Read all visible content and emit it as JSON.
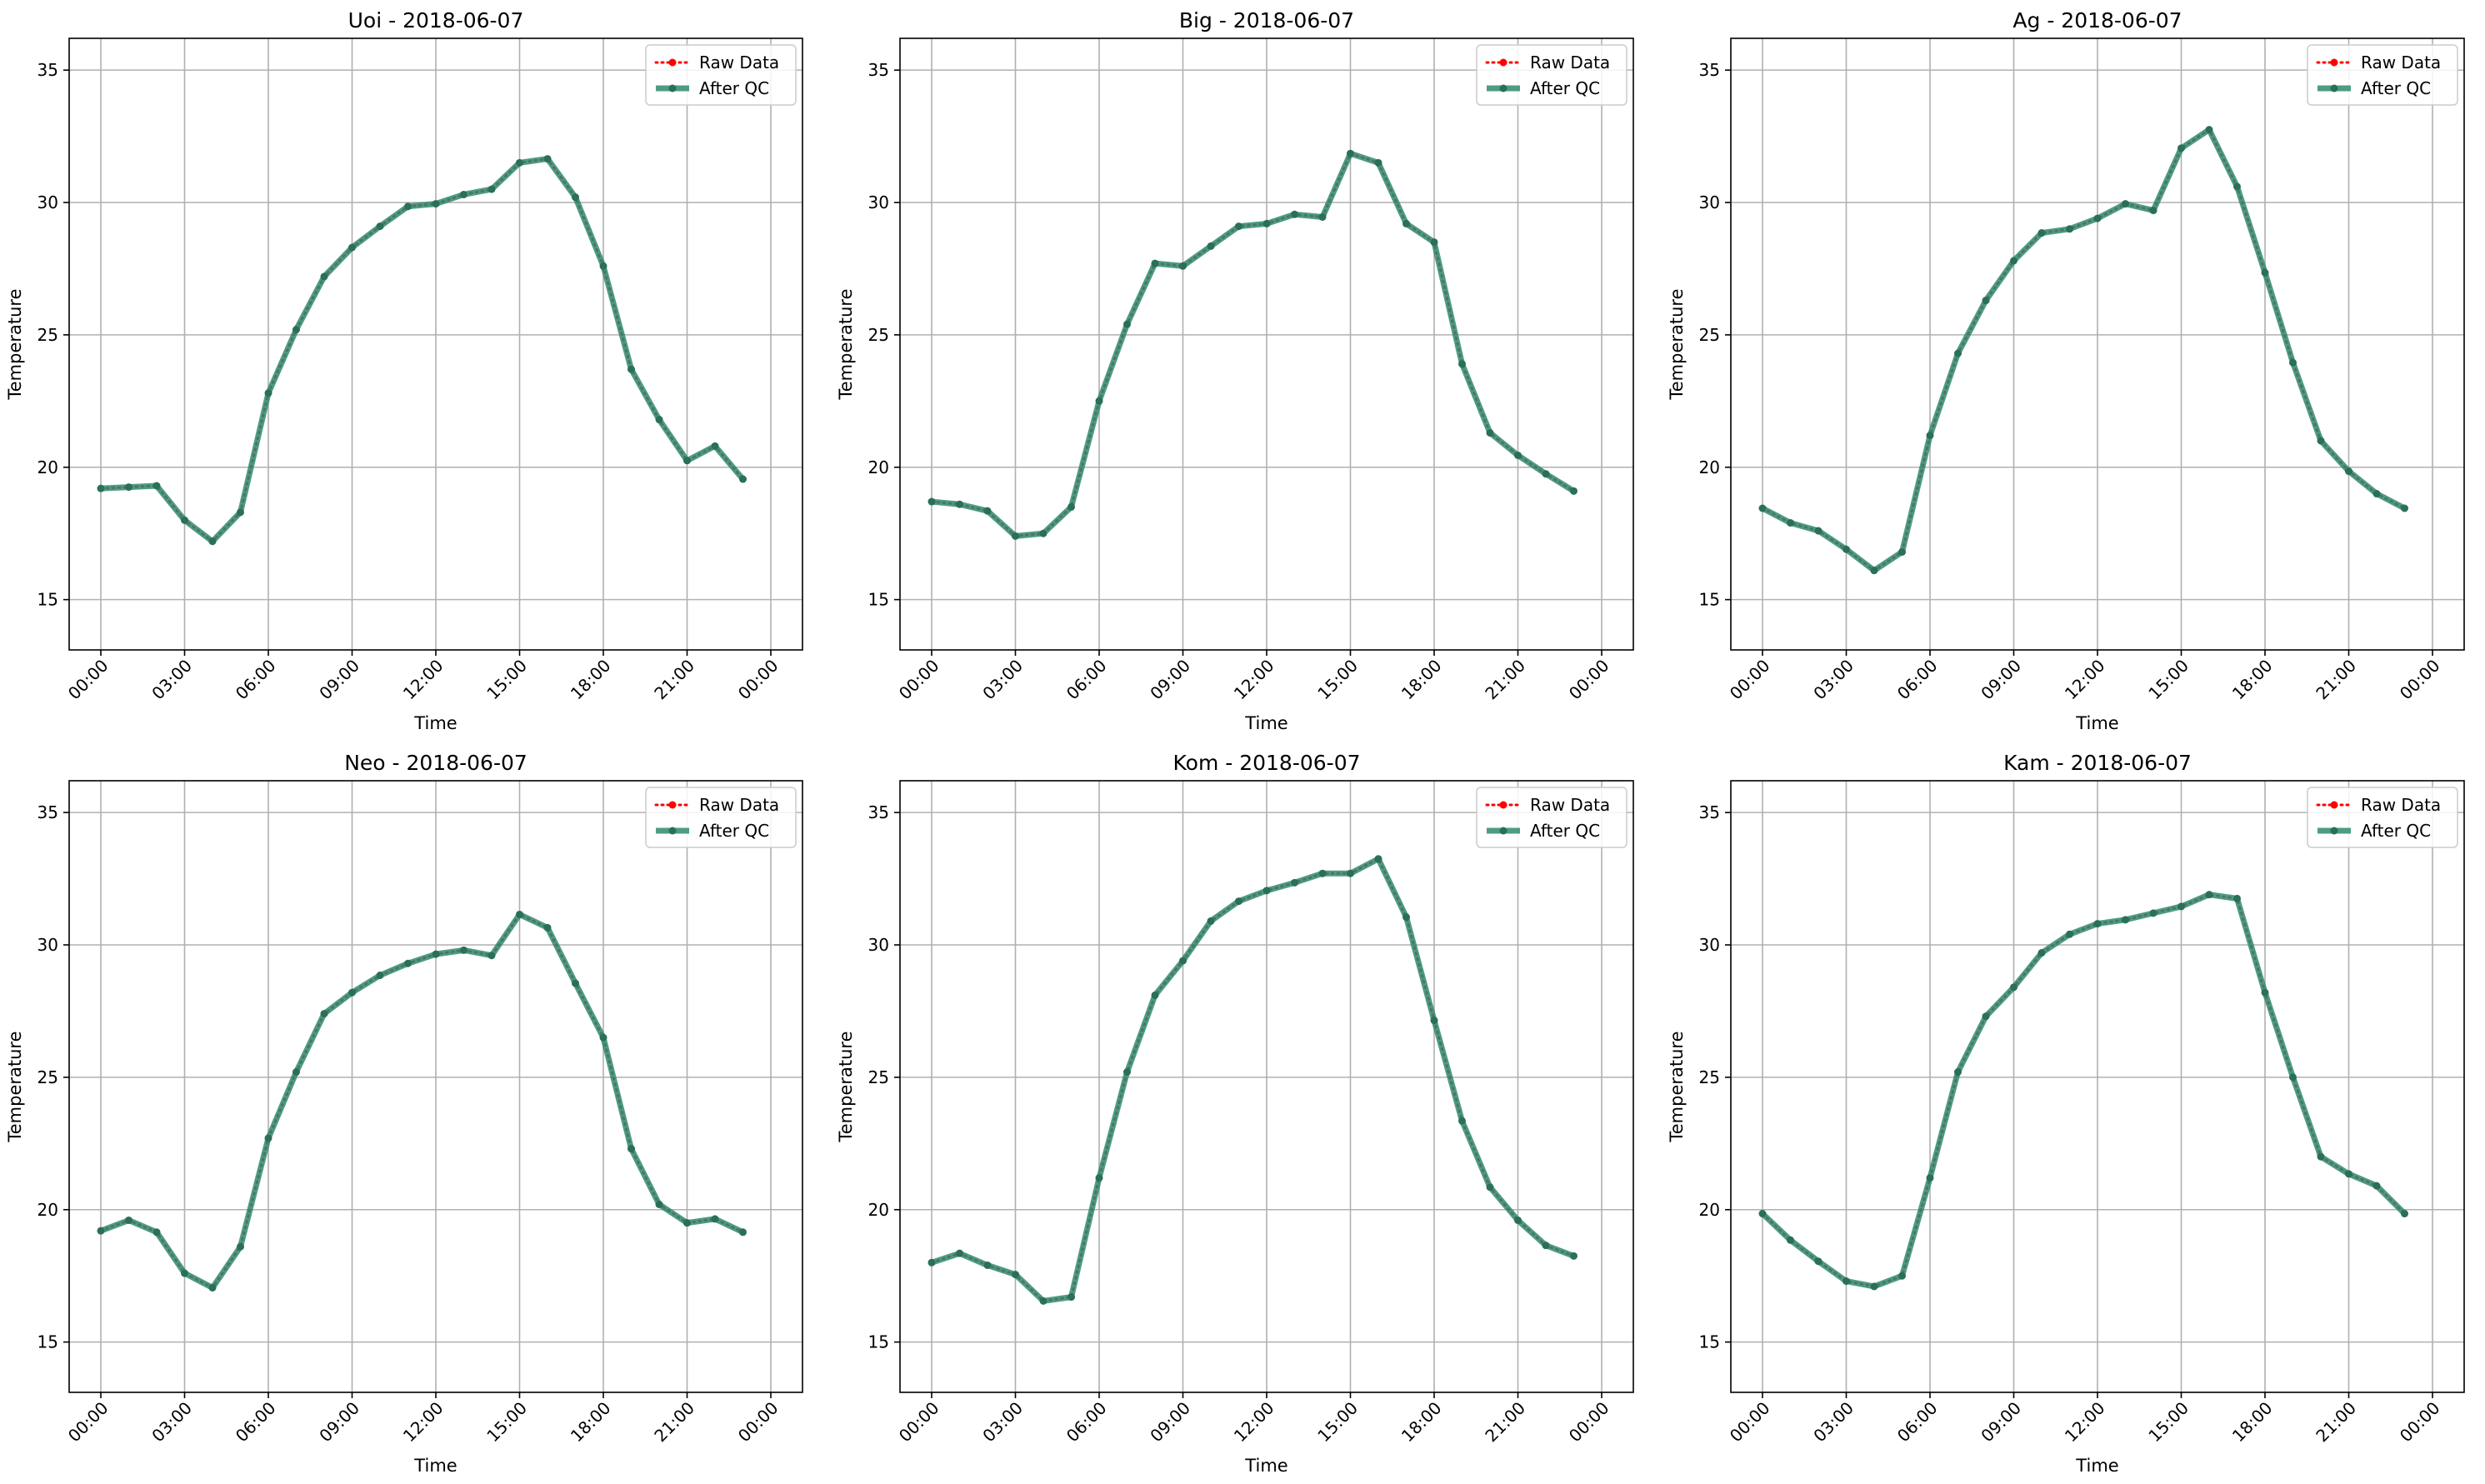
{
  "chart_data": [
    {
      "type": "line",
      "title": "Uoi - 2018-06-07",
      "xlabel": "Time",
      "ylabel": "Temperature",
      "x": [
        "00:00",
        "01:00",
        "02:00",
        "03:00",
        "04:00",
        "05:00",
        "06:00",
        "07:00",
        "08:00",
        "09:00",
        "10:00",
        "11:00",
        "12:00",
        "13:00",
        "14:00",
        "15:00",
        "16:00",
        "17:00",
        "18:00",
        "19:00",
        "20:00",
        "21:00",
        "22:00",
        "23:00"
      ],
      "xticks": [
        "00:00",
        "03:00",
        "06:00",
        "09:00",
        "12:00",
        "15:00",
        "18:00",
        "21:00",
        "00:00"
      ],
      "yticks": [
        15,
        20,
        25,
        30,
        35
      ],
      "ylim": [
        13.1,
        36.2
      ],
      "grid": true,
      "legend_position": "top-right",
      "series": [
        {
          "name": "Raw Data",
          "color": "#ff0000",
          "style": "dotted",
          "marker": "circle",
          "values": [
            19.2,
            19.25,
            19.3,
            18.0,
            17.2,
            18.3,
            22.8,
            25.2,
            27.2,
            28.3,
            29.1,
            29.85,
            29.95,
            30.3,
            30.5,
            31.5,
            31.65,
            30.2,
            27.6,
            23.7,
            21.8,
            20.25,
            20.8,
            19.55
          ]
        },
        {
          "name": "After QC",
          "color": "#2e8b6f",
          "style": "solid",
          "marker": "circle",
          "values": [
            19.2,
            19.25,
            19.3,
            18.0,
            17.2,
            18.3,
            22.8,
            25.2,
            27.2,
            28.3,
            29.1,
            29.85,
            29.95,
            30.3,
            30.5,
            31.5,
            31.65,
            30.2,
            27.6,
            23.7,
            21.8,
            20.25,
            20.8,
            19.55
          ]
        }
      ]
    },
    {
      "type": "line",
      "title": "Big - 2018-06-07",
      "xlabel": "Time",
      "ylabel": "Temperature",
      "x": [
        "00:00",
        "01:00",
        "02:00",
        "03:00",
        "04:00",
        "05:00",
        "06:00",
        "07:00",
        "08:00",
        "09:00",
        "10:00",
        "11:00",
        "12:00",
        "13:00",
        "14:00",
        "15:00",
        "16:00",
        "17:00",
        "18:00",
        "19:00",
        "20:00",
        "21:00",
        "22:00",
        "23:00"
      ],
      "xticks": [
        "00:00",
        "03:00",
        "06:00",
        "09:00",
        "12:00",
        "15:00",
        "18:00",
        "21:00",
        "00:00"
      ],
      "yticks": [
        15,
        20,
        25,
        30,
        35
      ],
      "ylim": [
        13.1,
        36.2
      ],
      "grid": true,
      "legend_position": "top-right",
      "series": [
        {
          "name": "Raw Data",
          "color": "#ff0000",
          "style": "dotted",
          "marker": "circle",
          "values": [
            18.7,
            18.6,
            18.35,
            17.4,
            17.5,
            18.5,
            22.5,
            25.4,
            27.7,
            27.6,
            28.35,
            29.1,
            29.2,
            29.55,
            29.45,
            31.85,
            31.5,
            29.2,
            28.5,
            23.9,
            21.3,
            20.45,
            19.75,
            19.1
          ]
        },
        {
          "name": "After QC",
          "color": "#2e8b6f",
          "style": "solid",
          "marker": "circle",
          "values": [
            18.7,
            18.6,
            18.35,
            17.4,
            17.5,
            18.5,
            22.5,
            25.4,
            27.7,
            27.6,
            28.35,
            29.1,
            29.2,
            29.55,
            29.45,
            31.85,
            31.5,
            29.2,
            28.5,
            23.9,
            21.3,
            20.45,
            19.75,
            19.1
          ]
        }
      ]
    },
    {
      "type": "line",
      "title": "Ag - 2018-06-07",
      "xlabel": "Time",
      "ylabel": "Temperature",
      "x": [
        "00:00",
        "01:00",
        "02:00",
        "03:00",
        "04:00",
        "05:00",
        "06:00",
        "07:00",
        "08:00",
        "09:00",
        "10:00",
        "11:00",
        "12:00",
        "13:00",
        "14:00",
        "15:00",
        "16:00",
        "17:00",
        "18:00",
        "19:00",
        "20:00",
        "21:00",
        "22:00",
        "23:00"
      ],
      "xticks": [
        "00:00",
        "03:00",
        "06:00",
        "09:00",
        "12:00",
        "15:00",
        "18:00",
        "21:00",
        "00:00"
      ],
      "yticks": [
        15,
        20,
        25,
        30,
        35
      ],
      "ylim": [
        13.1,
        36.2
      ],
      "grid": true,
      "legend_position": "top-right",
      "series": [
        {
          "name": "Raw Data",
          "color": "#ff0000",
          "style": "dotted",
          "marker": "circle",
          "values": [
            18.45,
            17.9,
            17.6,
            16.9,
            16.1,
            16.8,
            21.2,
            24.3,
            26.3,
            27.8,
            28.85,
            29.0,
            29.4,
            29.95,
            29.7,
            32.05,
            32.75,
            30.6,
            27.35,
            23.95,
            21.0,
            19.85,
            19.0,
            18.45
          ]
        },
        {
          "name": "After QC",
          "color": "#2e8b6f",
          "style": "solid",
          "marker": "circle",
          "values": [
            18.45,
            17.9,
            17.6,
            16.9,
            16.1,
            16.8,
            21.2,
            24.3,
            26.3,
            27.8,
            28.85,
            29.0,
            29.4,
            29.95,
            29.7,
            32.05,
            32.75,
            30.6,
            27.35,
            23.95,
            21.0,
            19.85,
            19.0,
            18.45
          ]
        }
      ]
    },
    {
      "type": "line",
      "title": "Neo - 2018-06-07",
      "xlabel": "Time",
      "ylabel": "Temperature",
      "x": [
        "00:00",
        "01:00",
        "02:00",
        "03:00",
        "04:00",
        "05:00",
        "06:00",
        "07:00",
        "08:00",
        "09:00",
        "10:00",
        "11:00",
        "12:00",
        "13:00",
        "14:00",
        "15:00",
        "16:00",
        "17:00",
        "18:00",
        "19:00",
        "20:00",
        "21:00",
        "22:00",
        "23:00"
      ],
      "xticks": [
        "00:00",
        "03:00",
        "06:00",
        "09:00",
        "12:00",
        "15:00",
        "18:00",
        "21:00",
        "00:00"
      ],
      "yticks": [
        15,
        20,
        25,
        30,
        35
      ],
      "ylim": [
        13.1,
        36.2
      ],
      "grid": true,
      "legend_position": "top-right",
      "series": [
        {
          "name": "Raw Data",
          "color": "#ff0000",
          "style": "dotted",
          "marker": "circle",
          "values": [
            19.2,
            19.6,
            19.15,
            17.6,
            17.05,
            18.6,
            22.7,
            25.2,
            27.4,
            28.2,
            28.85,
            29.3,
            29.65,
            29.8,
            29.6,
            31.15,
            30.65,
            28.55,
            26.5,
            22.3,
            20.2,
            19.5,
            19.65,
            19.15
          ]
        },
        {
          "name": "After QC",
          "color": "#2e8b6f",
          "style": "solid",
          "marker": "circle",
          "values": [
            19.2,
            19.6,
            19.15,
            17.6,
            17.05,
            18.6,
            22.7,
            25.2,
            27.4,
            28.2,
            28.85,
            29.3,
            29.65,
            29.8,
            29.6,
            31.15,
            30.65,
            28.55,
            26.5,
            22.3,
            20.2,
            19.5,
            19.65,
            19.15
          ]
        }
      ]
    },
    {
      "type": "line",
      "title": "Kom - 2018-06-07",
      "xlabel": "Time",
      "ylabel": "Temperature",
      "x": [
        "00:00",
        "01:00",
        "02:00",
        "03:00",
        "04:00",
        "05:00",
        "06:00",
        "07:00",
        "08:00",
        "09:00",
        "10:00",
        "11:00",
        "12:00",
        "13:00",
        "14:00",
        "15:00",
        "16:00",
        "17:00",
        "18:00",
        "19:00",
        "20:00",
        "21:00",
        "22:00",
        "23:00"
      ],
      "xticks": [
        "00:00",
        "03:00",
        "06:00",
        "09:00",
        "12:00",
        "15:00",
        "18:00",
        "21:00",
        "00:00"
      ],
      "yticks": [
        15,
        20,
        25,
        30,
        35
      ],
      "ylim": [
        13.1,
        36.2
      ],
      "grid": true,
      "legend_position": "top-right",
      "series": [
        {
          "name": "Raw Data",
          "color": "#ff0000",
          "style": "dotted",
          "marker": "circle",
          "values": [
            18.0,
            18.35,
            17.9,
            17.55,
            16.55,
            16.7,
            21.2,
            25.2,
            28.1,
            29.4,
            30.9,
            31.65,
            32.05,
            32.35,
            32.7,
            32.7,
            33.25,
            31.05,
            27.15,
            23.35,
            20.85,
            19.6,
            18.65,
            18.25
          ]
        },
        {
          "name": "After QC",
          "color": "#2e8b6f",
          "style": "solid",
          "marker": "circle",
          "values": [
            18.0,
            18.35,
            17.9,
            17.55,
            16.55,
            16.7,
            21.2,
            25.2,
            28.1,
            29.4,
            30.9,
            31.65,
            32.05,
            32.35,
            32.7,
            32.7,
            33.25,
            31.05,
            27.15,
            23.35,
            20.85,
            19.6,
            18.65,
            18.25
          ]
        }
      ]
    },
    {
      "type": "line",
      "title": "Kam - 2018-06-07",
      "xlabel": "Time",
      "ylabel": "Temperature",
      "x": [
        "00:00",
        "01:00",
        "02:00",
        "03:00",
        "04:00",
        "05:00",
        "06:00",
        "07:00",
        "08:00",
        "09:00",
        "10:00",
        "11:00",
        "12:00",
        "13:00",
        "14:00",
        "15:00",
        "16:00",
        "17:00",
        "18:00",
        "19:00",
        "20:00",
        "21:00",
        "22:00",
        "23:00"
      ],
      "xticks": [
        "00:00",
        "03:00",
        "06:00",
        "09:00",
        "12:00",
        "15:00",
        "18:00",
        "21:00",
        "00:00"
      ],
      "yticks": [
        15,
        20,
        25,
        30,
        35
      ],
      "ylim": [
        13.1,
        36.2
      ],
      "grid": true,
      "legend_position": "top-right",
      "series": [
        {
          "name": "Raw Data",
          "color": "#ff0000",
          "style": "dotted",
          "marker": "circle",
          "values": [
            19.85,
            18.85,
            18.05,
            17.3,
            17.1,
            17.5,
            21.2,
            25.2,
            27.3,
            28.4,
            29.7,
            30.4,
            30.8,
            30.95,
            31.2,
            31.45,
            31.9,
            31.75,
            28.2,
            25.0,
            22.0,
            21.35,
            20.9,
            19.85
          ]
        },
        {
          "name": "After QC",
          "color": "#2e8b6f",
          "style": "solid",
          "marker": "circle",
          "values": [
            19.85,
            18.85,
            18.05,
            17.3,
            17.1,
            17.5,
            21.2,
            25.2,
            27.3,
            28.4,
            29.7,
            30.4,
            30.8,
            30.95,
            31.2,
            31.45,
            31.9,
            31.75,
            28.2,
            25.0,
            22.0,
            21.35,
            20.9,
            19.85
          ]
        }
      ]
    }
  ]
}
